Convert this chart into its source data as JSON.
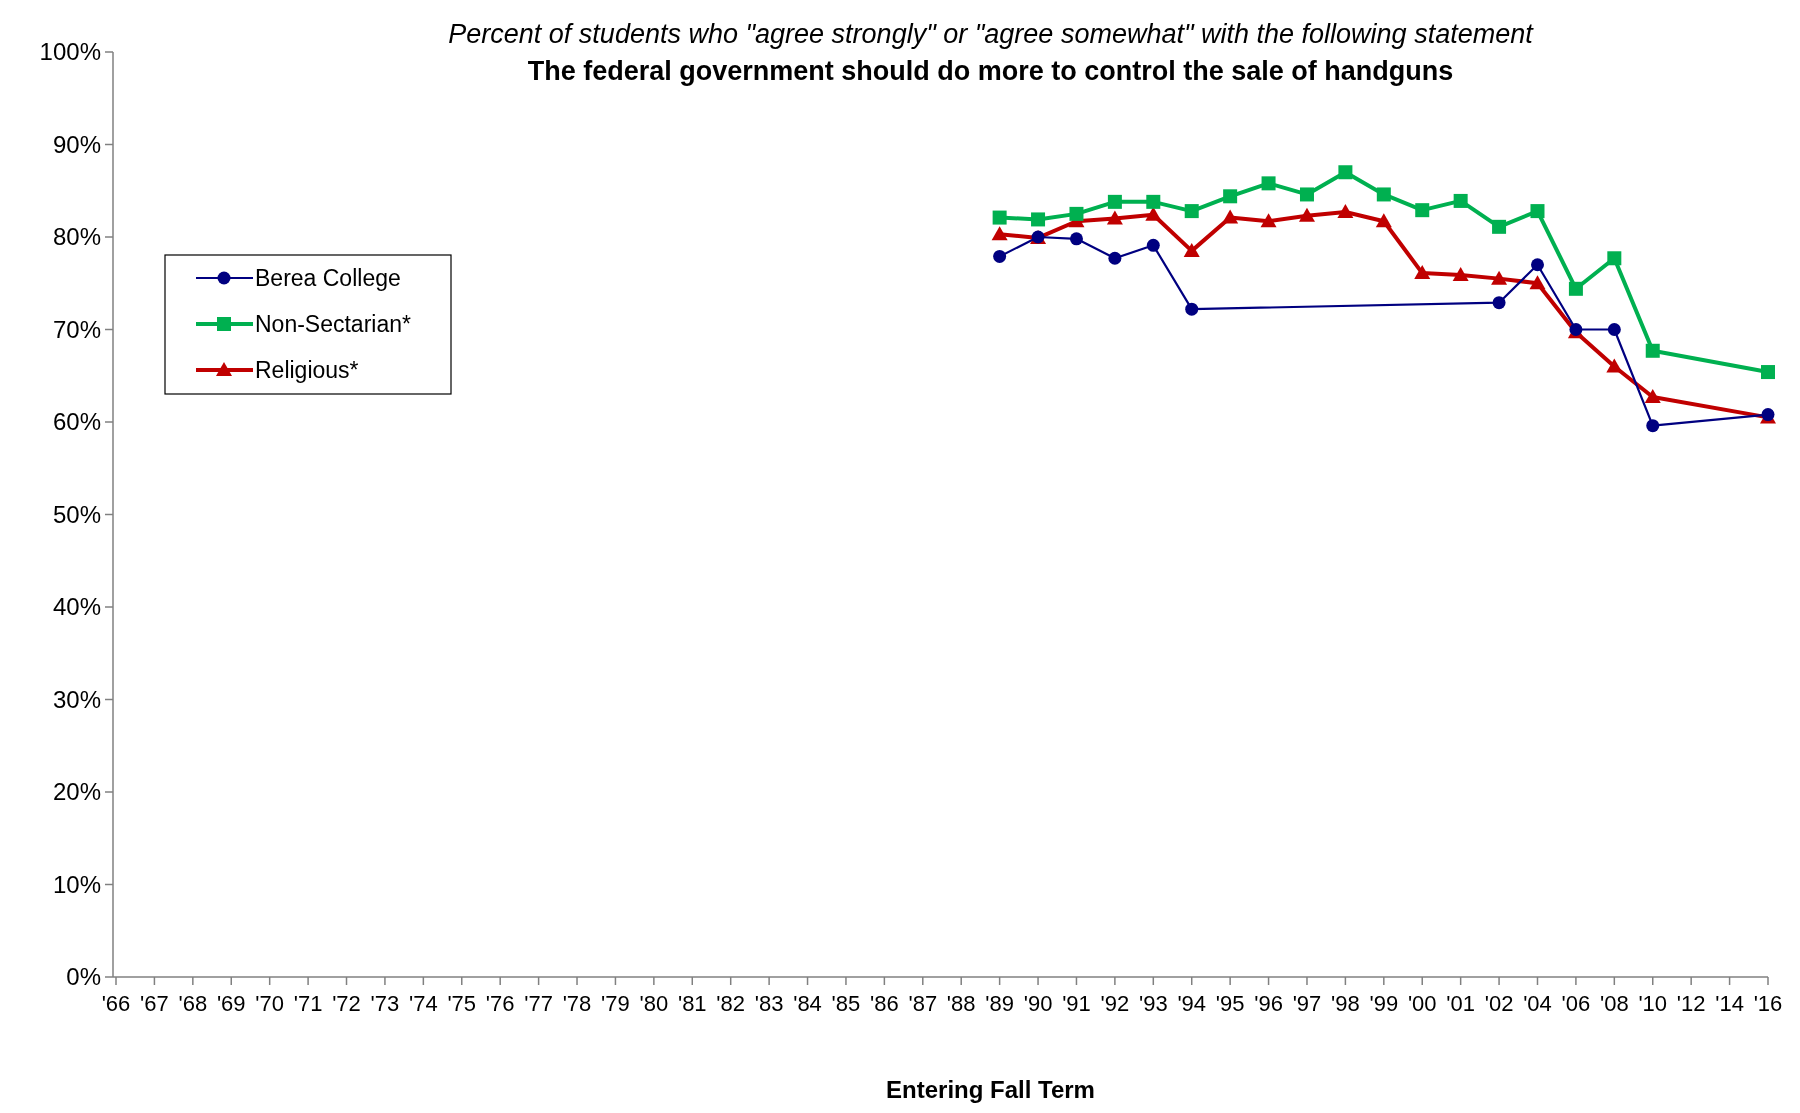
{
  "chart_data": {
    "type": "line",
    "title": "The federal government should do more to control the sale of handguns",
    "subtitle": "Percent of students who \"agree strongly\" or \"agree somewhat\" with the following statement",
    "xlabel": "Entering Fall Term",
    "categories": [
      "'66",
      "'67",
      "'68",
      "'69",
      "'70",
      "'71",
      "'72",
      "'73",
      "'74",
      "'75",
      "'76",
      "'77",
      "'78",
      "'79",
      "'80",
      "'81",
      "'82",
      "'83",
      "'84",
      "'85",
      "'86",
      "'87",
      "'88",
      "'89",
      "'90",
      "'91",
      "'92",
      "'93",
      "'94",
      "'95",
      "'96",
      "'97",
      "'98",
      "'99",
      "'00",
      "'01",
      "'02",
      "'04",
      "'06",
      "'08",
      "'10",
      "'12",
      "'14",
      "'16"
    ],
    "series": [
      {
        "name": "Berea College",
        "color": "#000080",
        "marker": "circle",
        "values": [
          null,
          null,
          null,
          null,
          null,
          null,
          null,
          null,
          null,
          null,
          null,
          null,
          null,
          null,
          null,
          null,
          null,
          null,
          null,
          null,
          null,
          null,
          null,
          77.9,
          80.0,
          79.8,
          77.7,
          79.1,
          72.2,
          null,
          null,
          null,
          null,
          null,
          null,
          null,
          72.9,
          77.0,
          70.0,
          70.0,
          59.6,
          null,
          null,
          60.8
        ]
      },
      {
        "name": "Non-Sectarian*",
        "color": "#00b050",
        "marker": "square",
        "values": [
          null,
          null,
          null,
          null,
          null,
          null,
          null,
          null,
          null,
          null,
          null,
          null,
          null,
          null,
          null,
          null,
          null,
          null,
          null,
          null,
          null,
          null,
          null,
          82.1,
          81.9,
          82.5,
          83.8,
          83.8,
          82.8,
          84.4,
          85.8,
          84.6,
          87.0,
          84.6,
          82.9,
          83.9,
          81.1,
          82.8,
          74.4,
          77.7,
          67.7,
          null,
          null,
          65.4
        ]
      },
      {
        "name": "Religious*",
        "color": "#c00000",
        "marker": "triangle",
        "values": [
          null,
          null,
          null,
          null,
          null,
          null,
          null,
          null,
          null,
          null,
          null,
          null,
          null,
          null,
          null,
          null,
          null,
          null,
          null,
          null,
          null,
          null,
          null,
          80.3,
          79.9,
          81.7,
          82.0,
          82.4,
          78.5,
          82.1,
          81.7,
          82.3,
          82.7,
          81.7,
          76.1,
          75.9,
          75.5,
          75.0,
          69.7,
          66.0,
          62.7,
          null,
          null,
          60.5
        ]
      }
    ],
    "ylim": [
      0,
      100
    ],
    "yticks": [
      {
        "value": 0,
        "label": "0%"
      },
      {
        "value": 10,
        "label": "10%"
      },
      {
        "value": 20,
        "label": "20%"
      },
      {
        "value": 30,
        "label": "30%"
      },
      {
        "value": 40,
        "label": "40%"
      },
      {
        "value": 50,
        "label": "50%"
      },
      {
        "value": 60,
        "label": "60%"
      },
      {
        "value": 70,
        "label": "70%"
      },
      {
        "value": 80,
        "label": "80%"
      },
      {
        "value": 90,
        "label": "90%"
      },
      {
        "value": 100,
        "label": "100%"
      }
    ],
    "grid": false,
    "legend": "left"
  }
}
